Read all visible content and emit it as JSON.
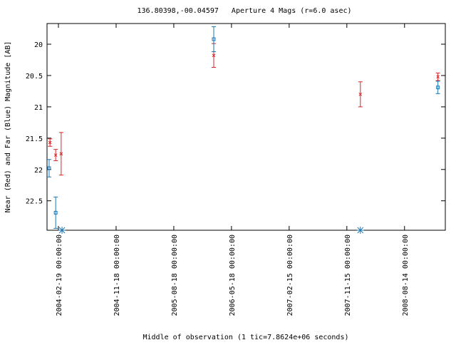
{
  "chart_data": {
    "type": "scatter",
    "title": "136.80398,-00.04597   Aperture 4 Mags (r=6.0 asec)",
    "x_label": "Middle of observation (1 tic=7.8624e+06 seconds)",
    "y_label": "Near (Red) and Far (Blue) Magnitude [AB]",
    "xlim": [
      "2003-12-27 00:00:00",
      "2009-02-23 00:00:00"
    ],
    "xticks": [
      "2004-02-19 00:00:00",
      "2004-11-18 00:00:00",
      "2005-08-18 00:00:00",
      "2006-05-18 00:00:00",
      "2007-02-15 00:00:00",
      "2007-11-15 00:00:00",
      "2008-08-14 00:00:00"
    ],
    "ylim": [
      22.97,
      19.67
    ],
    "yticks": [
      20,
      20.5,
      21,
      21.5,
      22,
      22.5
    ],
    "series": [
      {
        "color": "#d62728",
        "marker": "x",
        "x": [
          "2004-01-10 00:00:00",
          "2004-02-06 00:00:00",
          "2004-03-03 00:00:00",
          "2006-02-23 00:00:00",
          "2008-01-18 00:00:00",
          "2009-01-19 00:00:00"
        ],
        "values": [
          21.57,
          21.77,
          21.75,
          20.18,
          20.8,
          20.52
        ],
        "errors": [
          0.06,
          0.09,
          0.34,
          0.19,
          0.2,
          0.06
        ]
      },
      {
        "color": "#1f77b4",
        "marker": "square",
        "x": [
          "2004-01-06 00:00:00",
          "2004-02-06 00:00:00",
          "2006-02-23 00:00:00",
          "2009-01-19 00:00:00"
        ],
        "values": [
          21.98,
          22.69,
          19.92,
          20.69
        ],
        "errors": [
          0.14,
          0.25,
          0.2,
          0.1
        ]
      },
      {
        "color": "#1f77b4",
        "marker": "star",
        "x": [
          "2004-03-07 00:00:00",
          "2008-01-18 00:00:00"
        ],
        "values": [
          22.97,
          22.97
        ]
      }
    ]
  }
}
